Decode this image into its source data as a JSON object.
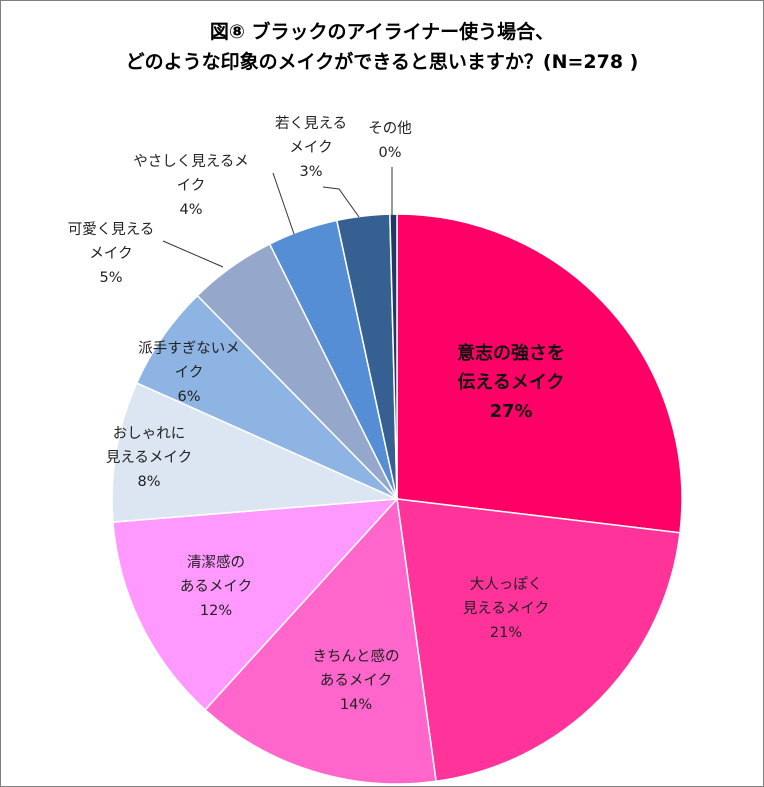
{
  "chart_data": {
    "type": "pie",
    "title_lines": [
      "図⑧ ブラックのアイライナー使う場合、",
      "どのような印象のメイクができると思いますか？(N=278 )"
    ],
    "slices": [
      {
        "label_lines": [
          "意志の強さを",
          "伝えるメイク"
        ],
        "pct_label": "27%",
        "value": 27,
        "color": "#ff0066"
      },
      {
        "label_lines": [
          "大人っぽく",
          "見えるメイク"
        ],
        "pct_label": "21%",
        "value": 21,
        "color": "#ff3399"
      },
      {
        "label_lines": [
          "きちんと感の",
          "あるメイク"
        ],
        "pct_label": "14%",
        "value": 14,
        "color": "#ff66cc"
      },
      {
        "label_lines": [
          "清潔感の",
          "あるメイク"
        ],
        "pct_label": "12%",
        "value": 12,
        "color": "#ff99ff"
      },
      {
        "label_lines": [
          "おしゃれに",
          "見えるメイク"
        ],
        "pct_label": "8%",
        "value": 8,
        "color": "#dce6f2"
      },
      {
        "label_lines": [
          "派手すぎないメ",
          "イク"
        ],
        "pct_label": "6%",
        "value": 6,
        "color": "#8eb4e3"
      },
      {
        "label_lines": [
          "可愛く見える",
          "メイク"
        ],
        "pct_label": "5%",
        "value": 5,
        "color": "#95a8cc"
      },
      {
        "label_lines": [
          "やさしく見えるメ",
          "イク"
        ],
        "pct_label": "4%",
        "value": 4,
        "color": "#558ed5"
      },
      {
        "label_lines": [
          "若く見える",
          "メイク"
        ],
        "pct_label": "3%",
        "value": 3,
        "color": "#376092"
      },
      {
        "label_lines": [
          "その他"
        ],
        "pct_label": "0%",
        "value": 0.4,
        "color": "#1f3864"
      }
    ],
    "legend": "none",
    "data_labels": "category and percent"
  }
}
